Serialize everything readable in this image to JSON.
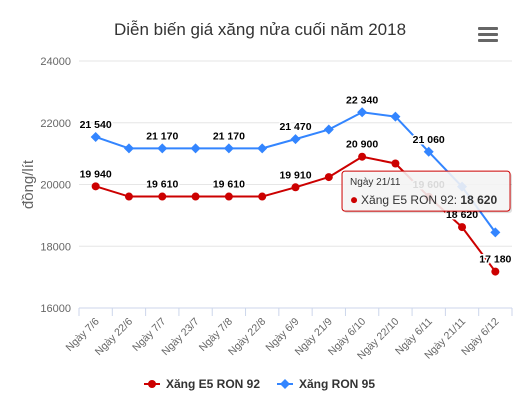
{
  "menu_icon": "hamburger-menu-icon",
  "chart_data": {
    "type": "line",
    "title": "Diễn biến giá xăng nửa cuối năm 2018",
    "ylabel": "đồng/lít",
    "xlabel": "",
    "ylim": [
      16000,
      24000
    ],
    "yticks": [
      16000,
      18000,
      20000,
      22000,
      24000
    ],
    "grid": true,
    "legend_position": "bottom-center",
    "categories": [
      "Ngày 7/6",
      "Ngày 22/6",
      "Ngày 7/7",
      "Ngày 23/7",
      "Ngày 7/8",
      "Ngày 22/8",
      "Ngày 6/9",
      "Ngày 21/9",
      "Ngày 6/10",
      "Ngày 22/10",
      "Ngày 6/11",
      "Ngày 21/11",
      "Ngày 6/12"
    ],
    "series": [
      {
        "name": "Xăng E5 RON 92",
        "color": "#cc0000",
        "marker": "circle",
        "values": [
          19940,
          19610,
          19610,
          19610,
          19610,
          19610,
          19910,
          20240,
          20900,
          20680,
          19600,
          18620,
          17180
        ],
        "data_labels": [
          "19 940",
          null,
          "19 610",
          null,
          "19 610",
          null,
          "19 910",
          null,
          "20 900",
          null,
          "19 600",
          "18 620",
          "17 180"
        ]
      },
      {
        "name": "Xăng RON 95",
        "color": "#3385ff",
        "marker": "diamond",
        "values": [
          21540,
          21170,
          21170,
          21170,
          21170,
          21170,
          21470,
          21780,
          22340,
          22200,
          21060,
          19930,
          18450
        ],
        "data_labels": [
          "21 540",
          null,
          "21 170",
          null,
          "21 170",
          null,
          "21 470",
          null,
          "22 340",
          null,
          "21 060",
          null,
          null
        ]
      }
    ],
    "tooltip": {
      "header": "Ngày 21/11",
      "series": "Xăng E5 RON 92",
      "value": "18 620",
      "category_index": 11,
      "series_index": 0
    }
  }
}
